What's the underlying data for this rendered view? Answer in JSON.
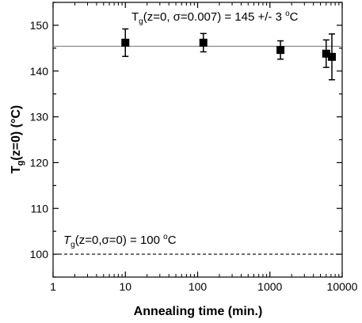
{
  "chart_data": {
    "type": "scatter",
    "xlabel": "Annealing time (min.)",
    "ylabel_main": "T",
    "ylabel_sub": "g",
    "ylabel_rest": "(z=0) (°C)",
    "x_scale": "log",
    "xlim": [
      1,
      10000
    ],
    "ylim": [
      95,
      155
    ],
    "x_ticks": [
      1,
      10,
      100,
      1000,
      10000
    ],
    "x_tick_labels": [
      "1",
      "10",
      "100",
      "1000",
      "10000"
    ],
    "y_ticks": [
      100,
      110,
      120,
      130,
      140,
      150
    ],
    "y_tick_labels": [
      "100",
      "110",
      "120",
      "130",
      "140",
      "150"
    ],
    "grid": false,
    "points": [
      {
        "x": 10,
        "y": 146.2,
        "err": 3.0
      },
      {
        "x": 120,
        "y": 146.2,
        "err": 2.0
      },
      {
        "x": 1400,
        "y": 144.6,
        "err": 2.0
      },
      {
        "x": 6000,
        "y": 143.8,
        "err": 3.0
      },
      {
        "x": 7200,
        "y": 143.1,
        "err": 5.0
      }
    ],
    "reference_lines": [
      {
        "y": 145.4,
        "style": "solid",
        "color": "#888888"
      },
      {
        "y": 100,
        "style": "dashed",
        "color": "#000000"
      }
    ],
    "annotations": {
      "top": {
        "pre": "T",
        "sub": "g",
        "mid": "(z=0, σ=0.007) = 145 +/- 3 ",
        "sup": "o",
        "post": "C"
      },
      "bottom": {
        "pre": "T",
        "sub": "g",
        "mid": "(z=0,σ=0) = 100 ",
        "sup": "o",
        "post": "C"
      }
    }
  }
}
